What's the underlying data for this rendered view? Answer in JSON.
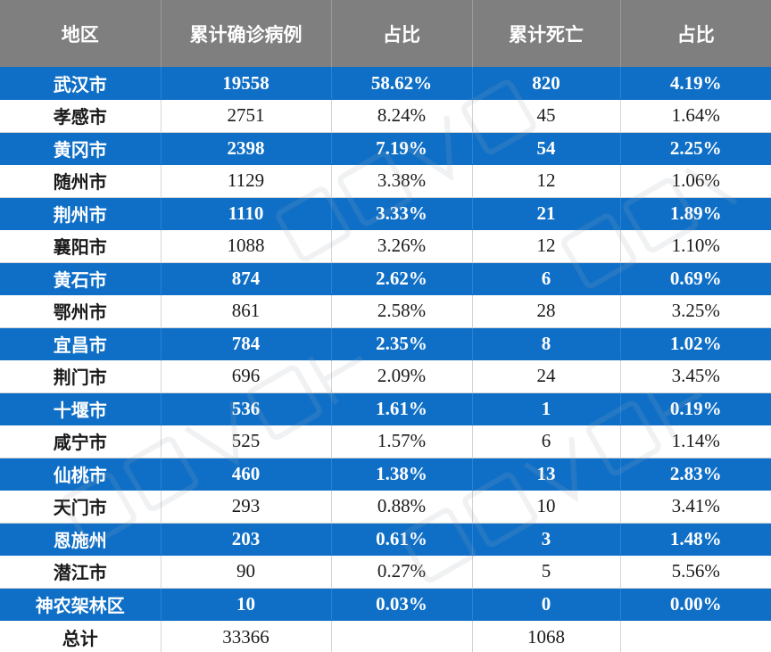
{
  "table": {
    "headers": [
      "地区",
      "累计确诊病例",
      "占比",
      "累计死亡",
      "占比"
    ],
    "rows": [
      {
        "region": "武汉市",
        "cases": "19558",
        "case_pct": "58.62%",
        "deaths": "820",
        "death_pct": "4.19%"
      },
      {
        "region": "孝感市",
        "cases": "2751",
        "case_pct": "8.24%",
        "deaths": "45",
        "death_pct": "1.64%"
      },
      {
        "region": "黄冈市",
        "cases": "2398",
        "case_pct": "7.19%",
        "deaths": "54",
        "death_pct": "2.25%"
      },
      {
        "region": "随州市",
        "cases": "1129",
        "case_pct": "3.38%",
        "deaths": "12",
        "death_pct": "1.06%"
      },
      {
        "region": "荆州市",
        "cases": "1110",
        "case_pct": "3.33%",
        "deaths": "21",
        "death_pct": "1.89%"
      },
      {
        "region": "襄阳市",
        "cases": "1088",
        "case_pct": "3.26%",
        "deaths": "12",
        "death_pct": "1.10%"
      },
      {
        "region": "黄石市",
        "cases": "874",
        "case_pct": "2.62%",
        "deaths": "6",
        "death_pct": "0.69%"
      },
      {
        "region": "鄂州市",
        "cases": "861",
        "case_pct": "2.58%",
        "deaths": "28",
        "death_pct": "3.25%"
      },
      {
        "region": "宜昌市",
        "cases": "784",
        "case_pct": "2.35%",
        "deaths": "8",
        "death_pct": "1.02%"
      },
      {
        "region": "荆门市",
        "cases": "696",
        "case_pct": "2.09%",
        "deaths": "24",
        "death_pct": "3.45%"
      },
      {
        "region": "十堰市",
        "cases": "536",
        "case_pct": "1.61%",
        "deaths": "1",
        "death_pct": "0.19%"
      },
      {
        "region": "咸宁市",
        "cases": "525",
        "case_pct": "1.57%",
        "deaths": "6",
        "death_pct": "1.14%"
      },
      {
        "region": "仙桃市",
        "cases": "460",
        "case_pct": "1.38%",
        "deaths": "13",
        "death_pct": "2.83%"
      },
      {
        "region": "天门市",
        "cases": "293",
        "case_pct": "0.88%",
        "deaths": "10",
        "death_pct": "3.41%"
      },
      {
        "region": "恩施州",
        "cases": "203",
        "case_pct": "0.61%",
        "deaths": "3",
        "death_pct": "1.48%"
      },
      {
        "region": "潜江市",
        "cases": "90",
        "case_pct": "0.27%",
        "deaths": "5",
        "death_pct": "5.56%"
      },
      {
        "region": "神农架林区",
        "cases": "10",
        "case_pct": "0.03%",
        "deaths": "0",
        "death_pct": "0.00%"
      }
    ],
    "total": {
      "region": "总计",
      "cases": "33366",
      "case_pct": "",
      "deaths": "1068",
      "death_pct": ""
    }
  },
  "colors": {
    "header_bg": "#7f7f7f",
    "stripe_blue": "#0f6fc6",
    "stripe_white": "#ffffff"
  }
}
